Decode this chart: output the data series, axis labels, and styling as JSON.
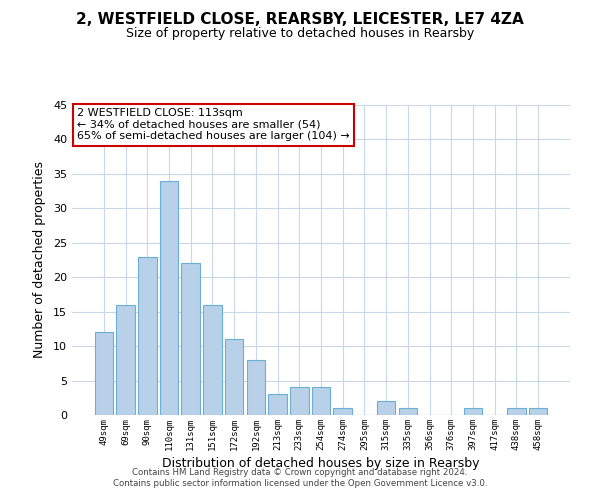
{
  "title_line1": "2, WESTFIELD CLOSE, REARSBY, LEICESTER, LE7 4ZA",
  "title_line2": "Size of property relative to detached houses in Rearsby",
  "bar_labels": [
    "49sqm",
    "69sqm",
    "90sqm",
    "110sqm",
    "131sqm",
    "151sqm",
    "172sqm",
    "192sqm",
    "213sqm",
    "233sqm",
    "254sqm",
    "274sqm",
    "295sqm",
    "315sqm",
    "335sqm",
    "356sqm",
    "376sqm",
    "397sqm",
    "417sqm",
    "438sqm",
    "458sqm"
  ],
  "bar_values": [
    12,
    16,
    23,
    34,
    22,
    16,
    11,
    8,
    3,
    4,
    4,
    1,
    0,
    2,
    1,
    0,
    0,
    1,
    0,
    1,
    1
  ],
  "bar_color": "#b8d0e8",
  "bar_edge_color": "#6aafd4",
  "xlabel": "Distribution of detached houses by size in Rearsby",
  "ylabel": "Number of detached properties",
  "ylim": [
    0,
    45
  ],
  "yticks": [
    0,
    5,
    10,
    15,
    20,
    25,
    30,
    35,
    40,
    45
  ],
  "annotation_title": "2 WESTFIELD CLOSE: 113sqm",
  "annotation_line2": "← 34% of detached houses are smaller (54)",
  "annotation_line3": "65% of semi-detached houses are larger (104) →",
  "annotation_box_color": "#ffffff",
  "annotation_box_edge": "#cc0000",
  "footer_line1": "Contains HM Land Registry data © Crown copyright and database right 2024.",
  "footer_line2": "Contains public sector information licensed under the Open Government Licence v3.0.",
  "bg_color": "#ffffff",
  "grid_color": "#c8d8e8"
}
